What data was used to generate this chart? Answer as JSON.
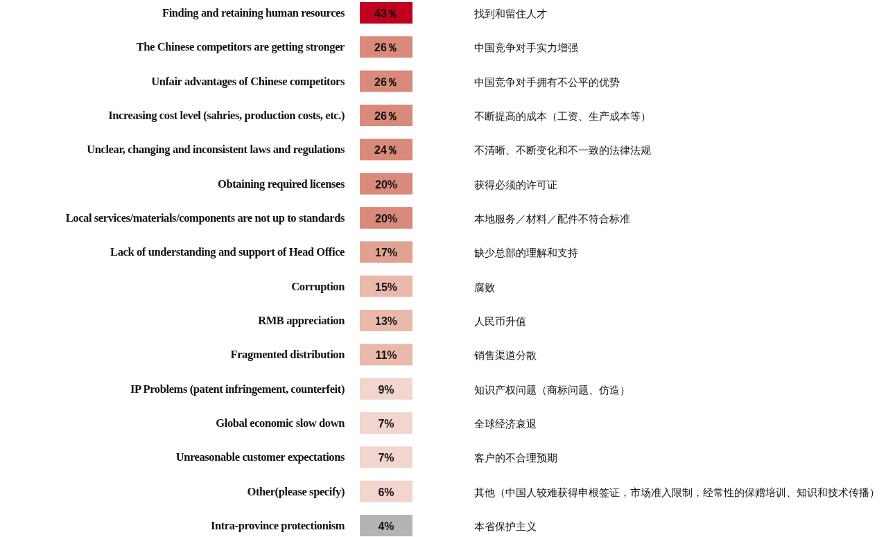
{
  "chart_data": {
    "type": "heatmap",
    "categories": [
      null
    ],
    "y_categories": [
      "Finding and retaining human resources",
      "The Chinese competitors are getting stronger",
      "Unfair advantages of Chinese competitors",
      "Increasing cost level (sahries, production costs, etc.)",
      "Unclear, changing and inconsistent laws and regulations",
      "Obtaining required licenses",
      "Local services/materials/components are not up to standards",
      "Lack of understanding and support of Head Office",
      "Corruption",
      "RMB appreciation",
      "Fragmented distribution",
      "IP Problems (patent infringement, counterfeit)",
      "Global economic slow down",
      "Unreasonable customer expectations",
      "Other(please specify)",
      "Intra-province protectionism"
    ],
    "y2_categories": [
      "找到和留住人才",
      "中国竞争对手实力增强",
      "中国竞争对手拥有不公平的优势",
      "不断提高的成本（工资、生产成本等）",
      "不清晰、不断变化和不一致的法律法规",
      "获得必须的许可证",
      "本地服务／材料／配件不符合标准",
      "缺少总部的理解和支持",
      "腐败",
      "人民币升值",
      "销售渠道分散",
      "知识产权问题（商标问题、仿造）",
      "全球经济衰退",
      "客户的不合理预期",
      "其他（中国人较难获得申根签证，市场准入限制，经常性的保赠培训、知识和技术传播）",
      "本省保护主义"
    ],
    "cells": [
      [
        43
      ],
      [
        26
      ],
      [
        26
      ],
      [
        26
      ],
      [
        24
      ],
      [
        20
      ],
      [
        20
      ],
      [
        17
      ],
      [
        15
      ],
      [
        13
      ],
      [
        11
      ],
      [
        9
      ],
      [
        7
      ],
      [
        7
      ],
      [
        6
      ],
      [
        4
      ]
    ],
    "cell_labels": [
      [
        "43％"
      ],
      [
        "26％"
      ],
      [
        "26％"
      ],
      [
        "26％"
      ],
      [
        "24％"
      ],
      [
        "20%"
      ],
      [
        "20%"
      ],
      [
        "17%"
      ],
      [
        "15%"
      ],
      [
        "13%"
      ],
      [
        "11%"
      ],
      [
        "9%"
      ],
      [
        "7%"
      ],
      [
        "7%"
      ],
      [
        "6%"
      ],
      [
        "4%"
      ]
    ]
  }
}
